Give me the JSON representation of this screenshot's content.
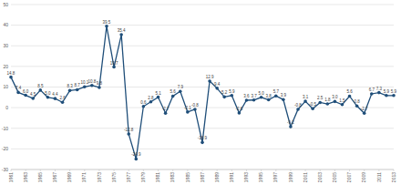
{
  "chart_data": {
    "type": "line",
    "x": [
      1961,
      1962,
      1963,
      1964,
      1965,
      1966,
      1967,
      1968,
      1969,
      1970,
      1971,
      1972,
      1973,
      1974,
      1975,
      1976,
      1977,
      1978,
      1979,
      1980,
      1981,
      1982,
      1983,
      1984,
      1985,
      1986,
      1987,
      1988,
      1989,
      1990,
      1991,
      1992,
      1993,
      1994,
      1995,
      1996,
      1997,
      1998,
      1999,
      2000,
      2001,
      2002,
      2003,
      2004,
      2005,
      2006,
      2007,
      2008,
      2009,
      2010,
      2011,
      2012,
      2013
    ],
    "values": [
      14.8,
      7.4,
      6.0,
      4.5,
      8.5,
      5.0,
      4.4,
      2.6,
      8.3,
      8.7,
      10.1,
      10.8,
      9.8,
      39.5,
      19.7,
      35.4,
      -12.8,
      -24.9,
      0.6,
      2.8,
      5.1,
      -2.7,
      5.6,
      7.9,
      -2.1,
      -0.8,
      -16.9,
      12.9,
      9.4,
      5.2,
      5.9,
      -2.6,
      3.6,
      3.7,
      5.0,
      3.8,
      5.7,
      3.9,
      -9.2,
      -0.8,
      3.1,
      -0.5,
      2.5,
      1.8,
      3.0,
      1.5,
      5.6,
      0.8,
      -2.7,
      6.7,
      7.3,
      5.9,
      5.9
    ],
    "value_labels": [
      "14.8",
      "7.4",
      "6.0",
      "4.5",
      "8.5",
      "5.0",
      "4.4",
      "2.6",
      "8.3",
      "8.7",
      "10.1",
      "10.8",
      "9.8",
      "39.5",
      "19.7",
      "35.4",
      "-12.8",
      "-24.9",
      "0.6",
      "2.8",
      "5.1",
      "-2.7",
      "5.6",
      "7.9",
      "-2.1",
      "-0.8",
      "-16.9",
      "12.9",
      "9.4",
      "5.2",
      "5.9",
      "-2.6",
      "3.6",
      "3.7",
      "5.0",
      "3.8",
      "5.7",
      "3.9",
      "-9.2",
      "-0.8",
      "3.1",
      "-0.5",
      "2.5",
      "1.8",
      "3.0",
      "1.5",
      "5.6",
      "0.8",
      "-2.7",
      "6.7",
      "7.3",
      "5.9",
      "5.9"
    ],
    "color": "#1f4e79",
    "marker": "circle",
    "line_style": "solid",
    "data_labels": true,
    "grid": true,
    "xlim": [
      1961,
      2013
    ],
    "xticks": [
      1961,
      1963,
      1965,
      1967,
      1969,
      1971,
      1973,
      1975,
      1977,
      1979,
      1981,
      1983,
      1985,
      1987,
      1989,
      1991,
      1993,
      1995,
      1997,
      1999,
      2001,
      2003,
      2005,
      2007,
      2009,
      2011,
      2013
    ],
    "ylim": [
      -30,
      50
    ],
    "yticks": [
      -30,
      -20,
      -10,
      0,
      10,
      20,
      30,
      40,
      50
    ]
  }
}
